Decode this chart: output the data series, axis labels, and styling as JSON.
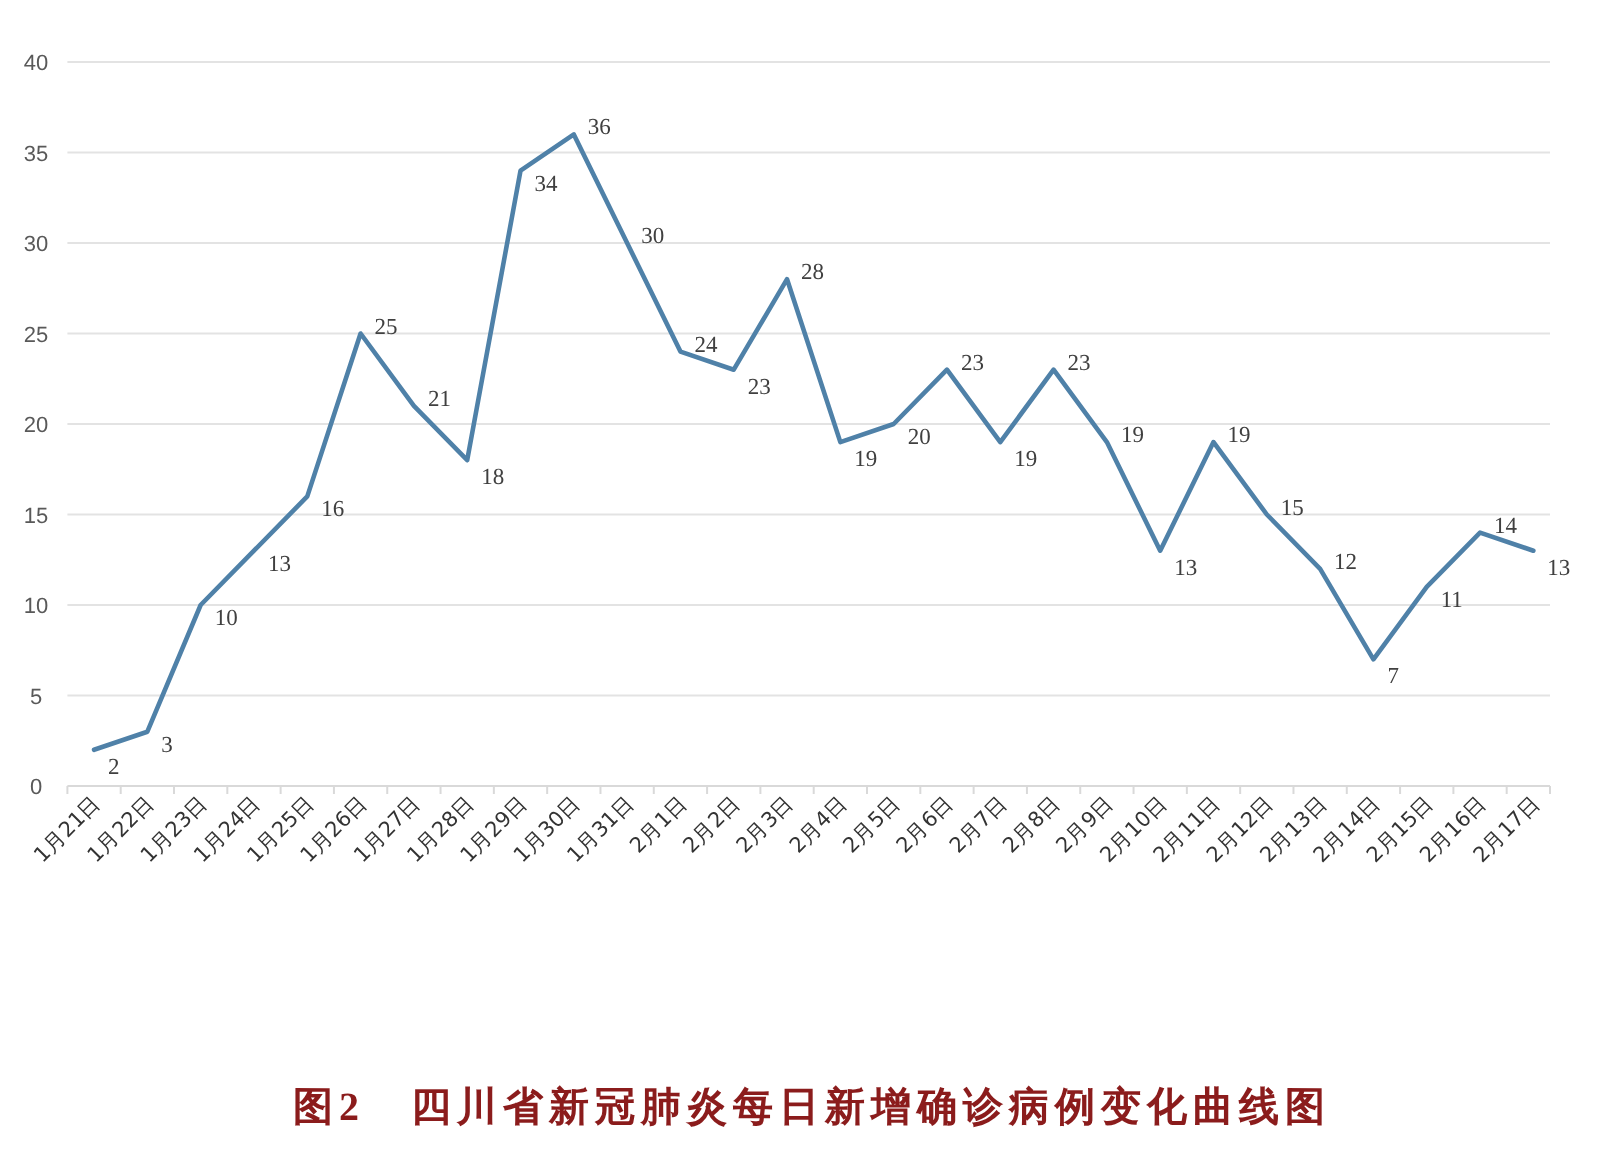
{
  "chart_data": {
    "type": "line",
    "title": "图2　四川省新冠肺炎每日新增确诊病例变化曲线图",
    "categories": [
      "1月21日",
      "1月22日",
      "1月23日",
      "1月24日",
      "1月25日",
      "1月26日",
      "1月27日",
      "1月28日",
      "1月29日",
      "1月30日",
      "1月31日",
      "2月1日",
      "2月2日",
      "2月3日",
      "2月4日",
      "2月5日",
      "2月6日",
      "2月7日",
      "2月8日",
      "2月9日",
      "2月10日",
      "2月11日",
      "2月12日",
      "2月13日",
      "2月14日",
      "2月15日",
      "2月16日",
      "2月17日"
    ],
    "series": [
      {
        "color": "#4f81a8",
        "values": [
          2,
          3,
          10,
          13,
          16,
          25,
          21,
          18,
          34,
          36,
          30,
          24,
          23,
          28,
          19,
          20,
          23,
          19,
          23,
          19,
          13,
          19,
          15,
          12,
          7,
          11,
          14,
          13
        ]
      }
    ],
    "ylim": [
      0,
      40
    ],
    "yticks": [
      0,
      5,
      10,
      15,
      20,
      25,
      30,
      35,
      40
    ],
    "grid": "y",
    "data_labels": true
  }
}
